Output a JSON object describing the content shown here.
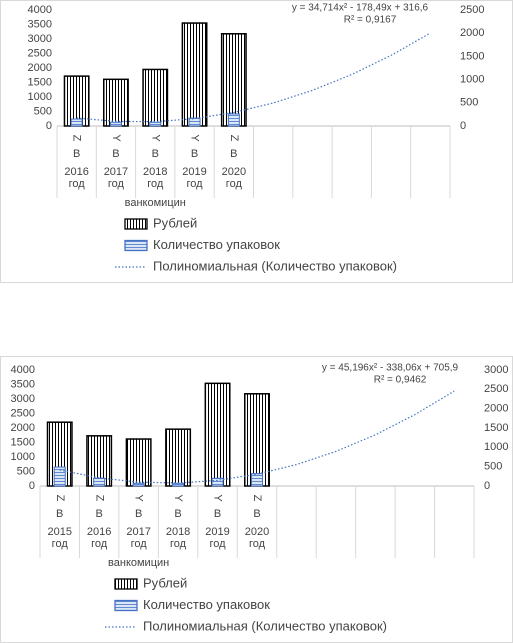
{
  "chart_data": [
    {
      "type": "bar",
      "equation": "y = 34,714x² - 178,49x + 316,6",
      "r2": "R² = 0,9167",
      "group_label": "ванкомицин",
      "category_codes": [
        "Z",
        "Y",
        "Y",
        "Y",
        "Z",
        null,
        null,
        null,
        null,
        null
      ],
      "category_sub": [
        "В",
        "В",
        "В",
        "В",
        "В",
        null,
        null,
        null,
        null,
        null
      ],
      "categories": [
        "2016 год",
        "2017 год",
        "2018 год",
        "2019 год",
        "2020 год",
        null,
        null,
        null,
        null,
        null
      ],
      "series": [
        {
          "name": "Рублей",
          "color": "#000000",
          "values": [
            1720,
            1610,
            1950,
            3550,
            3180,
            null,
            null,
            null,
            null,
            null
          ]
        },
        {
          "name": "Количество упаковок",
          "color": "#4472c4",
          "axis": "y2",
          "values": [
            150,
            80,
            80,
            170,
            260,
            null,
            null,
            null,
            null,
            null
          ]
        },
        {
          "name": "Полиномиальная (Количество упаковок)",
          "color": "#4472c4",
          "axis": "y2",
          "trend": true,
          "values": [
            172.8,
            98.4,
            93.4,
            157.9,
            291.8,
            495.2,
            768.0,
            1110.3,
            1522.0,
            2003.2
          ]
        }
      ],
      "ylim": [
        0,
        4000
      ],
      "yticks": [
        0,
        500,
        1000,
        1500,
        2000,
        2500,
        3000,
        3500,
        4000
      ],
      "y2lim": [
        0,
        2500
      ],
      "y2ticks": [
        0,
        500,
        1000,
        1500,
        2000,
        2500
      ]
    },
    {
      "type": "bar",
      "equation": "y = 45,196x² - 338,06x + 705,9",
      "r2": "R² = 0,9462",
      "group_label": "ванкомицин",
      "category_codes": [
        "Z",
        "Z",
        "Y",
        "Y",
        "Y",
        "Z",
        null,
        null,
        null,
        null,
        null
      ],
      "category_sub": [
        "В",
        "В",
        "В",
        "В",
        "В",
        "В",
        null,
        null,
        null,
        null,
        null
      ],
      "categories": [
        "2015 год",
        "2016 год",
        "2017 год",
        "2018 год",
        "2019 год",
        "2020 год",
        null,
        null,
        null,
        null,
        null
      ],
      "series": [
        {
          "name": "Рублей",
          "color": "#000000",
          "values": [
            2200,
            1730,
            1620,
            1960,
            3540,
            3180,
            null,
            null,
            null,
            null,
            null
          ]
        },
        {
          "name": "Количество упаковок",
          "color": "#4472c4",
          "axis": "y2",
          "values": [
            490,
            200,
            70,
            70,
            200,
            320,
            null,
            null,
            null,
            null,
            null
          ]
        },
        {
          "name": "Полиномиальная (Количество упаковок)",
          "color": "#4472c4",
          "axis": "y2",
          "trend": true,
          "values": [
            413.0,
            210.6,
            98.5,
            76.8,
            145.5,
            304.6,
            554.1,
            894.0,
            1324.2,
            1844.9,
            2455.9
          ]
        }
      ],
      "ylim": [
        0,
        4000
      ],
      "yticks": [
        0,
        500,
        1000,
        1500,
        2000,
        2500,
        3000,
        3500,
        4000
      ],
      "y2lim": [
        0,
        3000
      ],
      "y2ticks": [
        0,
        500,
        1000,
        1500,
        2000,
        2500,
        3000
      ]
    }
  ]
}
